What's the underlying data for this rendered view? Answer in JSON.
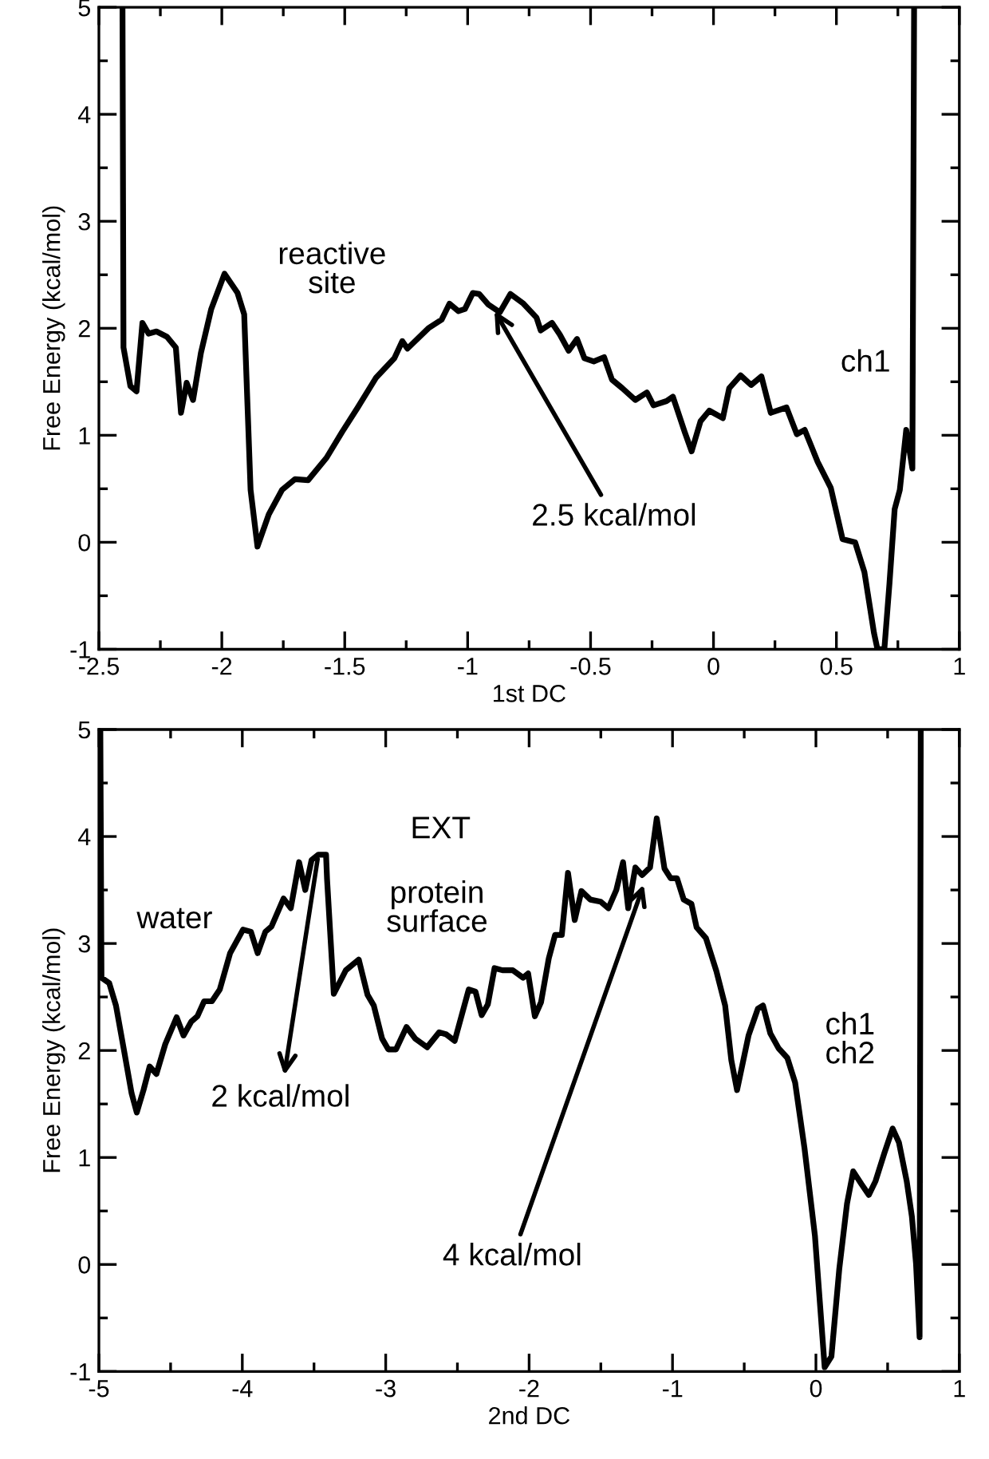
{
  "chart_data": [
    {
      "type": "line",
      "xlabel": "1st DC",
      "ylabel": "Free Energy (kcal/mol)",
      "xlim": [
        -2.5,
        1
      ],
      "ylim": [
        -1,
        5
      ],
      "xticks": [
        -2.5,
        {
          "value": -2.25,
          "label": null
        },
        -2,
        {
          "value": -1.75,
          "label": null
        },
        -1.5,
        {
          "value": -1.25,
          "label": null
        },
        -1,
        {
          "value": -0.75,
          "label": null
        },
        -0.5,
        {
          "value": -0.25,
          "label": null
        },
        0,
        {
          "value": 0.25,
          "label": null
        },
        0.5,
        {
          "value": 0.75,
          "label": null
        },
        1
      ],
      "yticks": [
        -1,
        {
          "value": -0.5,
          "label": null
        },
        0,
        {
          "value": 0.5,
          "label": null
        },
        1,
        {
          "value": 1.5,
          "label": null
        },
        2,
        {
          "value": 2.5,
          "label": null
        },
        3,
        {
          "value": 3.5,
          "label": null
        },
        4,
        {
          "value": 4.5,
          "label": null
        },
        5
      ],
      "annotations": [
        "reactive\nsite",
        {
          "text": "2.5 kcal/mol",
          "x": -0.9,
          "y": 2.2
        },
        "ch1"
      ],
      "series": [
        {
          "color": "#000000",
          "x": [
            -2.404,
            -2.4,
            -2.372,
            -2.347,
            -2.323,
            -2.298,
            -2.266,
            -2.223,
            -2.187,
            -2.166,
            -2.143,
            -2.117,
            -2.085,
            -2.043,
            -1.989,
            -1.936,
            -1.909,
            -1.883,
            -1.855,
            -1.809,
            -1.755,
            -1.702,
            -1.649,
            -1.574,
            -1.511,
            -1.447,
            -1.372,
            -1.298,
            -1.266,
            -1.245,
            -1.16,
            -1.106,
            -1.074,
            -1.038,
            -1.011,
            -0.979,
            -0.953,
            -0.915,
            -0.869,
            -0.826,
            -0.773,
            -0.72,
            -0.703,
            -0.657,
            -0.625,
            -0.589,
            -0.555,
            -0.525,
            -0.487,
            -0.445,
            -0.413,
            -0.371,
            -0.318,
            -0.271,
            -0.244,
            -0.191,
            -0.165,
            -0.117,
            -0.089,
            -0.053,
            -0.017,
            0.038,
            0.064,
            0.11,
            0.153,
            0.195,
            0.233,
            0.297,
            0.339,
            0.371,
            0.424,
            0.477,
            0.525,
            0.576,
            0.614,
            0.653,
            0.667,
            0.695,
            0.716,
            0.737,
            0.758,
            0.784,
            0.809,
            0.816
          ],
          "values": [
            5,
            1.82,
            1.46,
            1.41,
            2.05,
            1.95,
            1.97,
            1.92,
            1.82,
            1.21,
            1.49,
            1.33,
            1.77,
            2.18,
            2.51,
            2.33,
            2.13,
            0.49,
            -0.04,
            0.26,
            0.49,
            0.59,
            0.58,
            0.79,
            1.03,
            1.26,
            1.54,
            1.72,
            1.88,
            1.81,
            2.0,
            2.08,
            2.23,
            2.16,
            2.18,
            2.33,
            2.32,
            2.22,
            2.15,
            2.32,
            2.23,
            2.1,
            1.98,
            2.05,
            1.94,
            1.79,
            1.9,
            1.72,
            1.69,
            1.73,
            1.52,
            1.44,
            1.33,
            1.4,
            1.28,
            1.32,
            1.36,
            1.03,
            0.85,
            1.13,
            1.23,
            1.16,
            1.44,
            1.56,
            1.47,
            1.55,
            1.21,
            1.26,
            1.01,
            1.05,
            0.75,
            0.51,
            0.03,
            0.0,
            -0.28,
            -0.85,
            -1.0,
            -1.0,
            -0.38,
            0.31,
            0.49,
            1.05,
            0.69,
            5
          ]
        }
      ]
    },
    {
      "type": "line",
      "xlabel": "2nd DC",
      "ylabel": "Free Energy (kcal/mol)",
      "xlim": [
        -5,
        1
      ],
      "ylim": [
        -1,
        5
      ],
      "xticks": [
        -5,
        {
          "value": -4.5,
          "label": null
        },
        -4,
        {
          "value": -3.5,
          "label": null
        },
        -3,
        {
          "value": -2.5,
          "label": null
        },
        -2,
        {
          "value": -1.5,
          "label": null
        },
        -1,
        {
          "value": -0.5,
          "label": null
        },
        0,
        {
          "value": 0.5,
          "label": null
        },
        1
      ],
      "yticks": [
        -1,
        {
          "value": -0.5,
          "label": null
        },
        0,
        {
          "value": 0.5,
          "label": null
        },
        1,
        {
          "value": 1.5,
          "label": null
        },
        2,
        {
          "value": 2.5,
          "label": null
        },
        3,
        {
          "value": 3.5,
          "label": null
        },
        4,
        {
          "value": 4.5,
          "label": null
        },
        5
      ],
      "annotations": [
        "water",
        "EXT",
        "protein\nsurface",
        {
          "text": "2 kcal/mol",
          "x": -3.47,
          "y": 3.83
        },
        {
          "text": "4 kcal/mol",
          "x": -1.19,
          "y": 3.59
        },
        "ch1\nch2"
      ],
      "series": [
        {
          "color": "#000000",
          "x": [
            -4.99,
            -4.982,
            -4.928,
            -4.881,
            -4.826,
            -4.772,
            -4.736,
            -4.689,
            -4.646,
            -4.599,
            -4.537,
            -4.458,
            -4.41,
            -4.356,
            -4.313,
            -4.266,
            -4.212,
            -4.157,
            -4.085,
            -3.995,
            -3.94,
            -3.893,
            -3.839,
            -3.796,
            -3.712,
            -3.662,
            -3.604,
            -3.561,
            -3.517,
            -3.47,
            -3.416,
            -3.409,
            -3.362,
            -3.278,
            -3.188,
            -3.127,
            -3.083,
            -3.025,
            -2.982,
            -2.928,
            -2.855,
            -2.794,
            -2.711,
            -2.627,
            -2.577,
            -2.519,
            -2.421,
            -2.374,
            -2.331,
            -2.288,
            -2.241,
            -2.186,
            -2.114,
            -2.042,
            -2.007,
            -1.96,
            -1.917,
            -1.863,
            -1.819,
            -1.772,
            -1.729,
            -1.682,
            -1.635,
            -1.573,
            -1.501,
            -1.447,
            -1.392,
            -1.345,
            -1.309,
            -1.259,
            -1.212,
            -1.157,
            -1.11,
            -1.056,
            -1.013,
            -0.969,
            -0.922,
            -0.868,
            -0.832,
            -0.767,
            -0.694,
            -0.633,
            -0.59,
            -0.55,
            -0.47,
            -0.405,
            -0.369,
            -0.318,
            -0.26,
            -0.199,
            -0.145,
            -0.08,
            -0.007,
            0.061,
            0.108,
            0.163,
            0.217,
            0.26,
            0.318,
            0.369,
            0.416,
            0.477,
            0.535,
            0.579,
            0.633,
            0.669,
            0.698,
            0.723,
            0.731
          ],
          "values": [
            5,
            2.68,
            2.63,
            2.42,
            2.01,
            1.6,
            1.42,
            1.63,
            1.85,
            1.78,
            2.06,
            2.31,
            2.14,
            2.27,
            2.32,
            2.46,
            2.46,
            2.57,
            2.91,
            3.13,
            3.11,
            2.91,
            3.11,
            3.16,
            3.42,
            3.33,
            3.76,
            3.5,
            3.78,
            3.83,
            3.83,
            3.6,
            2.53,
            2.75,
            2.85,
            2.52,
            2.42,
            2.11,
            2.01,
            2.01,
            2.22,
            2.11,
            2.03,
            2.17,
            2.15,
            2.09,
            2.57,
            2.55,
            2.33,
            2.43,
            2.77,
            2.75,
            2.75,
            2.68,
            2.72,
            2.32,
            2.45,
            2.86,
            3.08,
            3.08,
            3.66,
            3.22,
            3.49,
            3.41,
            3.39,
            3.33,
            3.5,
            3.76,
            3.33,
            3.71,
            3.64,
            3.71,
            4.17,
            3.7,
            3.61,
            3.61,
            3.41,
            3.37,
            3.15,
            3.05,
            2.74,
            2.42,
            1.91,
            1.63,
            2.14,
            2.39,
            2.42,
            2.16,
            2.02,
            1.93,
            1.7,
            1.09,
            0.27,
            -0.96,
            -0.86,
            -0.04,
            0.57,
            0.87,
            0.75,
            0.65,
            0.78,
            1.04,
            1.27,
            1.14,
            0.78,
            0.45,
            0.01,
            -0.68,
            5
          ]
        }
      ]
    }
  ]
}
